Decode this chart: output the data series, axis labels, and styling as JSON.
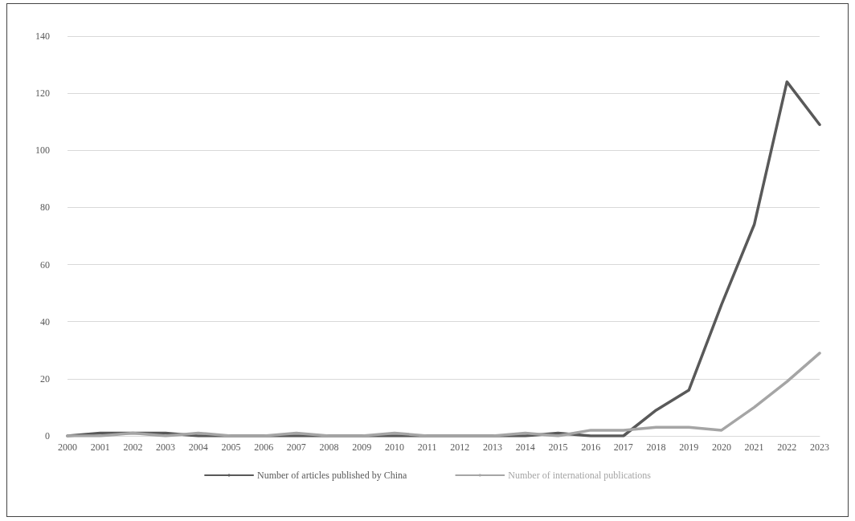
{
  "chart_data": {
    "type": "line",
    "categories": [
      "2000",
      "2001",
      "2002",
      "2003",
      "2004",
      "2005",
      "2006",
      "2007",
      "2008",
      "2009",
      "2010",
      "2011",
      "2012",
      "2013",
      "2014",
      "2015",
      "2016",
      "2017",
      "2018",
      "2019",
      "2020",
      "2021",
      "2022",
      "2023"
    ],
    "series": [
      {
        "name": "Number of articles published by China",
        "color": "#595959",
        "values": [
          0,
          1,
          1,
          1,
          0,
          0,
          0,
          0,
          0,
          0,
          0,
          0,
          0,
          0,
          0,
          1,
          0,
          0,
          9,
          16,
          46,
          74,
          124,
          109
        ]
      },
      {
        "name": "Number of international publications",
        "color": "#a5a5a5",
        "values": [
          0,
          0,
          1,
          0,
          1,
          0,
          0,
          1,
          0,
          0,
          1,
          0,
          0,
          0,
          1,
          0,
          2,
          2,
          3,
          3,
          2,
          10,
          19,
          29
        ]
      }
    ],
    "ylim": [
      0,
      140
    ],
    "yticks": [
      0,
      20,
      40,
      60,
      80,
      100,
      120,
      140
    ],
    "grid": "y",
    "legend": "bottom",
    "marker": "none",
    "line_style": "solid"
  }
}
